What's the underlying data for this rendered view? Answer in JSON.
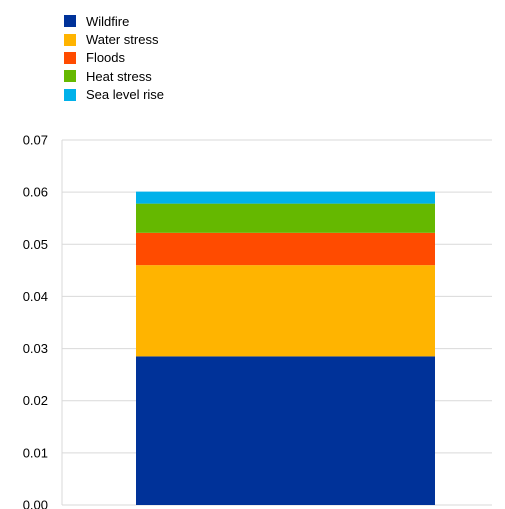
{
  "chart_data": {
    "type": "bar",
    "stacked": true,
    "categories": [
      ""
    ],
    "series": [
      {
        "name": "Wildfire",
        "color": "#003299",
        "values": [
          0.0285
        ]
      },
      {
        "name": "Water stress",
        "color": "#FFB400",
        "values": [
          0.0175
        ]
      },
      {
        "name": "Floods",
        "color": "#FF4B00",
        "values": [
          0.0062
        ]
      },
      {
        "name": "Heat stress",
        "color": "#65B800",
        "values": [
          0.0056
        ]
      },
      {
        "name": "Sea level rise",
        "color": "#00B1EA",
        "values": [
          0.0023
        ]
      }
    ],
    "ylim": [
      0,
      0.07
    ],
    "yticks": [
      "0.00",
      "0.01",
      "0.02",
      "0.03",
      "0.04",
      "0.05",
      "0.06",
      "0.07"
    ],
    "grid": true,
    "legend_position": "top-left"
  }
}
